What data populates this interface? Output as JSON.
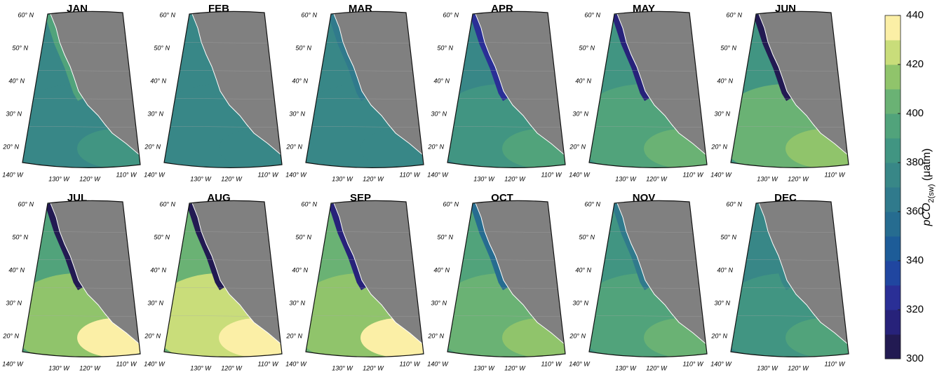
{
  "panels": [
    {
      "title": "JAN"
    },
    {
      "title": "FEB"
    },
    {
      "title": "MAR"
    },
    {
      "title": "APR"
    },
    {
      "title": "MAY"
    },
    {
      "title": "JUN"
    },
    {
      "title": "JUL"
    },
    {
      "title": "AUG"
    },
    {
      "title": "SEP"
    },
    {
      "title": "OCT"
    },
    {
      "title": "NOV"
    },
    {
      "title": "DEC"
    }
  ],
  "lat_labels": [
    "60° N",
    "50° N",
    "40° N",
    "30° N",
    "20° N"
  ],
  "lon_labels": [
    "140° W",
    "130° W",
    "120° W",
    "110° W"
  ],
  "colorbar": {
    "lim": [
      300,
      440
    ],
    "ticks": [
      300,
      320,
      340,
      360,
      380,
      400,
      420,
      440
    ],
    "colors": [
      "#221a52",
      "#27227a",
      "#2a2f96",
      "#2046a0",
      "#1d5c98",
      "#266c90",
      "#307a8c",
      "#388787",
      "#419582",
      "#51a37b",
      "#6ab274",
      "#90c46b",
      "#c9dd7a",
      "#fbefa6"
    ],
    "label": {
      "main": "pCO",
      "sub": "2(sw)",
      "unit": " (μatm)"
    }
  },
  "land_color": "#808080"
}
